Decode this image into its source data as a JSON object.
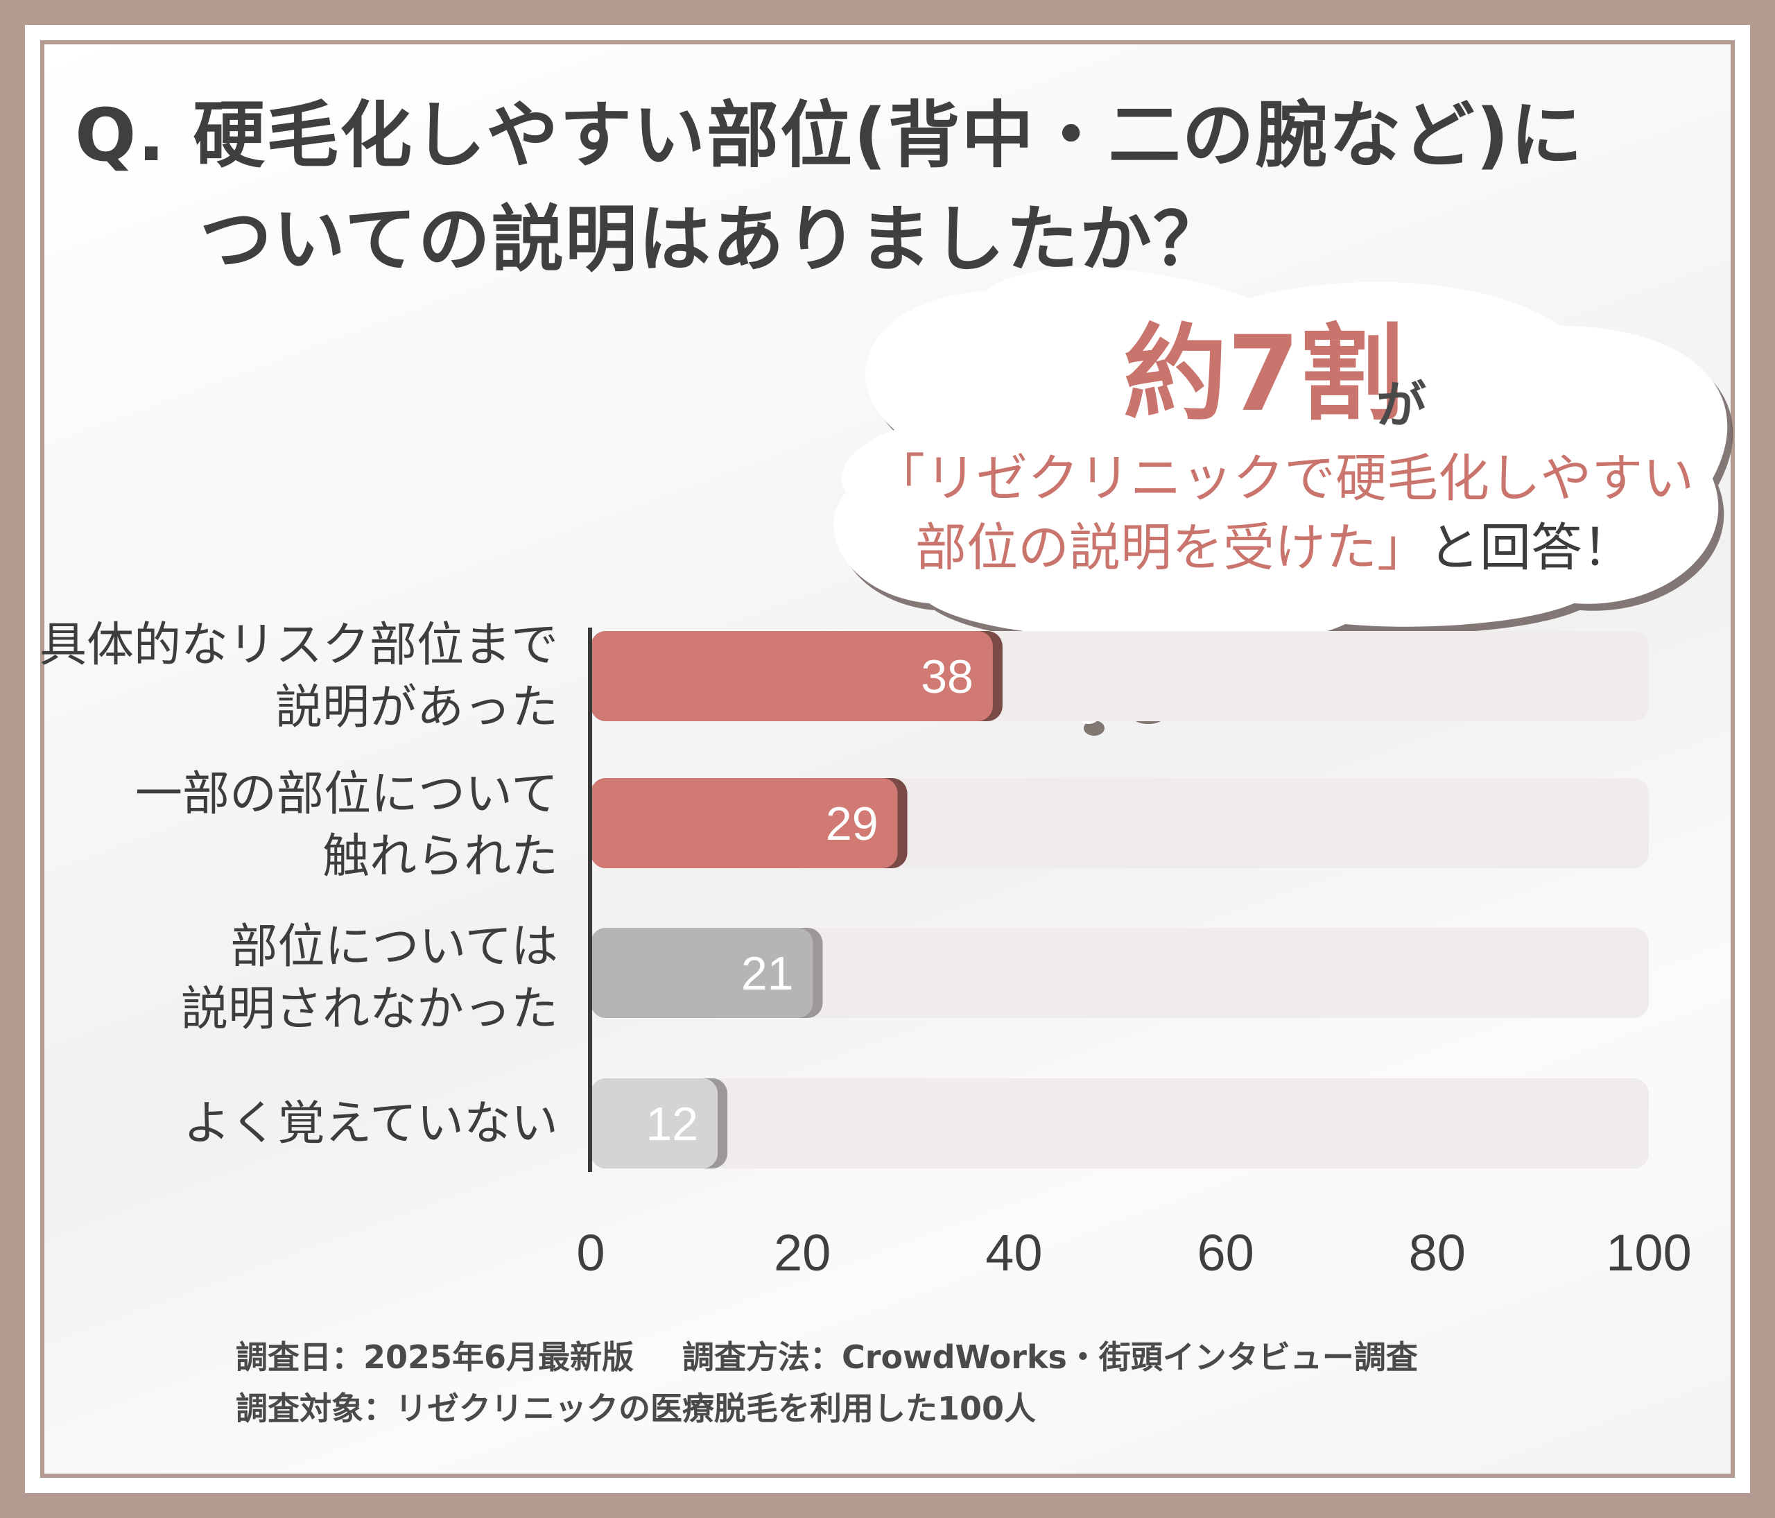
{
  "title": {
    "line1": "Q. 硬毛化しやすい部位(背中・二の腕など)に",
    "line2": "ついての説明はありましたか？"
  },
  "callout": {
    "highlight": "約7割",
    "suffix": "が",
    "line1": "「リゼクリニックで硬毛化しやすい",
    "line2_pink": "部位の説明を受けた」",
    "line2_dark": "と回答！"
  },
  "chart_data": {
    "type": "bar",
    "orientation": "horizontal",
    "categories": [
      [
        "具体的なリスク部位まで",
        "説明があった"
      ],
      [
        "一部の部位について",
        "触れられた"
      ],
      [
        "部位については",
        "説明されなかった"
      ],
      [
        "よく覚えていない"
      ]
    ],
    "values": [
      38,
      29,
      21,
      12
    ],
    "bar_colors": [
      "#d07a73",
      "#d07a73",
      "#b7b5b4",
      "#d6d4d3"
    ],
    "track_color": "#efeceb",
    "xlim": [
      0,
      100
    ],
    "xticks": [
      "0",
      "20",
      "40",
      "60",
      "80",
      "100"
    ],
    "xlabel": "",
    "ylabel": ""
  },
  "footer": {
    "date": "調査日：2025年6月最新版",
    "method": "調査方法：CrowdWorks・街頭インタビュー調査",
    "target": "調査対象：リゼクリニックの医療脱毛を利用した100人"
  },
  "colors": {
    "frame": "#b29a91",
    "accent": "#c9746c",
    "text": "#3f3f3f"
  }
}
